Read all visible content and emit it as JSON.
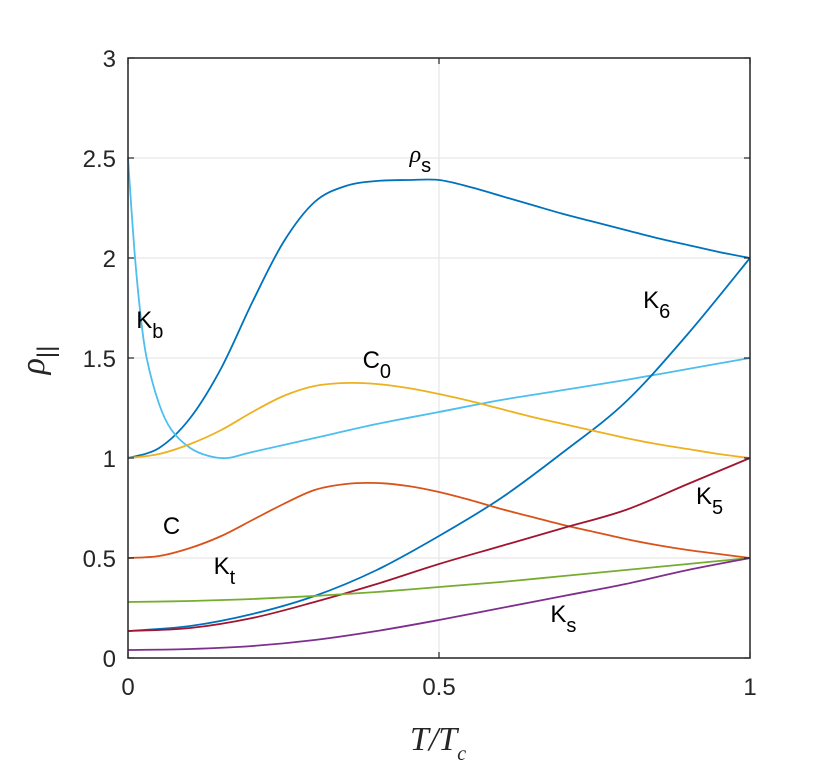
{
  "chart_data": {
    "type": "line",
    "xlabel": {
      "base": "T/T",
      "sub": "c"
    },
    "ylabel": {
      "base": "ρ",
      "sub": "||"
    },
    "xlim": [
      0,
      1
    ],
    "ylim": [
      0,
      3
    ],
    "xticks": [
      "0",
      "0.5",
      "1"
    ],
    "yticks": [
      "0",
      "0.5",
      "1",
      "1.5",
      "2",
      "2.5",
      "3"
    ],
    "grid": true,
    "series": [
      {
        "key": "rho_s",
        "label": {
          "base": "ρ",
          "sub": "s"
        },
        "color": "#0072BD",
        "x": [
          0,
          0.05,
          0.1,
          0.15,
          0.2,
          0.25,
          0.3,
          0.35,
          0.4,
          0.45,
          0.5,
          0.55,
          0.6,
          0.65,
          0.7,
          0.75,
          0.8,
          0.85,
          0.9,
          0.95,
          1
        ],
        "y": [
          1.0,
          1.05,
          1.2,
          1.45,
          1.78,
          2.08,
          2.28,
          2.36,
          2.385,
          2.39,
          2.39,
          2.355,
          2.31,
          2.265,
          2.22,
          2.18,
          2.14,
          2.1,
          2.065,
          2.03,
          2.0
        ]
      },
      {
        "key": "K_b",
        "label": {
          "base": "K",
          "sub": "b"
        },
        "color": "#4DBEEE",
        "x": [
          0,
          0.01,
          0.02,
          0.03,
          0.05,
          0.07,
          0.1,
          0.13,
          0.16,
          0.2,
          0.3,
          0.4,
          0.5,
          0.6,
          0.7,
          0.8,
          0.9,
          1
        ],
        "y": [
          2.5,
          2.05,
          1.72,
          1.5,
          1.27,
          1.14,
          1.05,
          1.01,
          1.0,
          1.03,
          1.1,
          1.17,
          1.23,
          1.29,
          1.34,
          1.39,
          1.445,
          1.5
        ]
      },
      {
        "key": "K_6",
        "label": {
          "base": "K",
          "sub": "6"
        },
        "color": "#0072BD",
        "x": [
          0,
          0.1,
          0.2,
          0.3,
          0.4,
          0.5,
          0.6,
          0.7,
          0.8,
          0.9,
          1
        ],
        "y": [
          0.135,
          0.16,
          0.22,
          0.31,
          0.44,
          0.61,
          0.8,
          1.03,
          1.28,
          1.62,
          2.0
        ]
      },
      {
        "key": "C_0",
        "label": {
          "base": "C",
          "sub": "0"
        },
        "color": "#EDB120",
        "x": [
          0,
          0.05,
          0.1,
          0.15,
          0.2,
          0.25,
          0.3,
          0.35,
          0.4,
          0.45,
          0.5,
          0.55,
          0.6,
          0.65,
          0.7,
          0.75,
          0.8,
          0.85,
          0.9,
          0.95,
          1
        ],
        "y": [
          1.0,
          1.02,
          1.07,
          1.14,
          1.23,
          1.31,
          1.36,
          1.375,
          1.37,
          1.35,
          1.32,
          1.285,
          1.245,
          1.205,
          1.17,
          1.135,
          1.1,
          1.07,
          1.045,
          1.02,
          1.0
        ]
      },
      {
        "key": "C",
        "label": {
          "base": "C",
          "sub": ""
        },
        "color": "#D95319",
        "x": [
          0,
          0.05,
          0.1,
          0.15,
          0.2,
          0.25,
          0.3,
          0.35,
          0.4,
          0.45,
          0.5,
          0.55,
          0.6,
          0.65,
          0.7,
          0.75,
          0.8,
          0.85,
          0.9,
          0.95,
          1
        ],
        "y": [
          0.5,
          0.51,
          0.55,
          0.61,
          0.69,
          0.77,
          0.84,
          0.87,
          0.875,
          0.86,
          0.83,
          0.79,
          0.745,
          0.705,
          0.665,
          0.63,
          0.595,
          0.565,
          0.54,
          0.52,
          0.5
        ]
      },
      {
        "key": "K_5",
        "label": {
          "base": "K",
          "sub": "5"
        },
        "color": "#A2142F",
        "x": [
          0,
          0.1,
          0.2,
          0.3,
          0.4,
          0.5,
          0.6,
          0.7,
          0.8,
          0.9,
          1
        ],
        "y": [
          0.135,
          0.15,
          0.2,
          0.28,
          0.37,
          0.47,
          0.56,
          0.65,
          0.74,
          0.87,
          1.0
        ]
      },
      {
        "key": "K_t",
        "label": {
          "base": "K",
          "sub": "t"
        },
        "color": "#77AC30",
        "x": [
          0,
          0.1,
          0.2,
          0.3,
          0.4,
          0.5,
          0.6,
          0.7,
          0.8,
          0.9,
          1
        ],
        "y": [
          0.28,
          0.285,
          0.295,
          0.31,
          0.33,
          0.355,
          0.38,
          0.41,
          0.44,
          0.47,
          0.5
        ]
      },
      {
        "key": "K_s",
        "label": {
          "base": "K",
          "sub": "s"
        },
        "color": "#7E2F8E",
        "x": [
          0,
          0.1,
          0.2,
          0.3,
          0.4,
          0.5,
          0.6,
          0.7,
          0.8,
          0.9,
          1
        ],
        "y": [
          0.04,
          0.045,
          0.06,
          0.09,
          0.135,
          0.19,
          0.25,
          0.31,
          0.37,
          0.44,
          0.5
        ]
      }
    ],
    "annotations": [
      {
        "series": "rho_s",
        "x": 0.47,
        "y": 2.48
      },
      {
        "series": "K_b",
        "x": 0.035,
        "y": 1.65
      },
      {
        "series": "K_6",
        "x": 0.85,
        "y": 1.75
      },
      {
        "series": "C_0",
        "x": 0.4,
        "y": 1.45
      },
      {
        "series": "C",
        "x": 0.07,
        "y": 0.62
      },
      {
        "series": "K_5",
        "x": 0.935,
        "y": 0.77
      },
      {
        "series": "K_t",
        "x": 0.155,
        "y": 0.42
      },
      {
        "series": "K_s",
        "x": 0.7,
        "y": 0.18
      }
    ]
  }
}
